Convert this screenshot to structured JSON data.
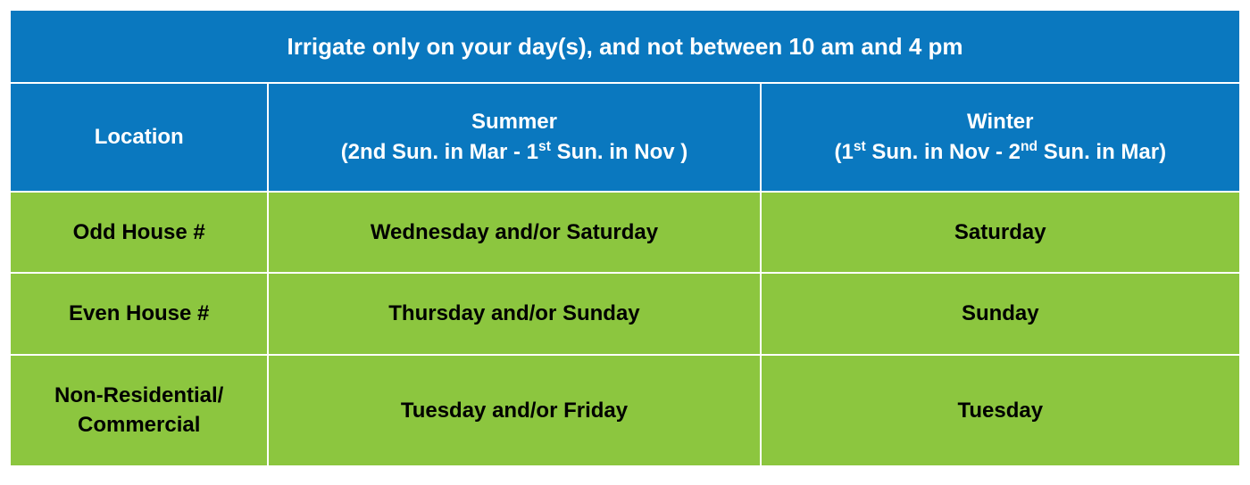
{
  "colors": {
    "header_bg": "#0a78bf",
    "header_text": "#ffffff",
    "body_bg": "#8cc63f",
    "body_text": "#000000",
    "border": "#ffffff"
  },
  "table": {
    "type": "table",
    "col_widths_pct": [
      21,
      40,
      39
    ],
    "banner": "Irrigate only on your day(s), and not between  10 am and 4 pm",
    "columns": {
      "location": {
        "line1": "Location"
      },
      "summer": {
        "line1": "Summer",
        "line2_html": "(2nd Sun. in Mar - 1<sup>st</sup> Sun. in Nov )"
      },
      "winter": {
        "line1": "Winter",
        "line2_html": "(1<sup>st</sup> Sun. in Nov - 2<sup>nd</sup> Sun. in Mar)"
      }
    },
    "rows": [
      {
        "location_line1": "Odd House #",
        "location_line2": "",
        "summer": "Wednesday and/or Saturday",
        "winter": "Saturday"
      },
      {
        "location_line1": "Even House #",
        "location_line2": "",
        "summer": "Thursday and/or Sunday",
        "winter": "Sunday"
      },
      {
        "location_line1": "Non-Residential/",
        "location_line2": "Commercial",
        "summer": "Tuesday and/or Friday",
        "winter": "Tuesday"
      }
    ],
    "fonts": {
      "banner_pt": 26,
      "colhdr_pt": 24,
      "cell_pt": 24,
      "family": "Segoe UI / Corbel",
      "header_weight": 600,
      "cell_weight": 700
    }
  }
}
